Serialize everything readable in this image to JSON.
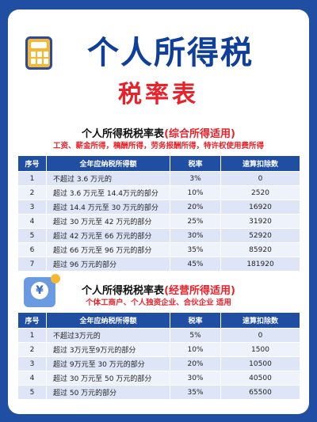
{
  "hero": {
    "title": "个人所得税",
    "subtitle": "税率表",
    "icon": "calculator-icon"
  },
  "section1": {
    "title": "个人所得税税率表",
    "title_highlight": "(综合所得适用)",
    "desc": "工资、薪金所得，稿酬所得，劳务报酬所得，特许权使用费所得",
    "headers": [
      "序号",
      "全年应纳税所得额",
      "税率",
      "速算扣除数"
    ],
    "rows": [
      [
        "1",
        "不超过 3.6 万元的",
        "3%",
        "0"
      ],
      [
        "2",
        "超过 3.6 万元至 14.4万元的部分",
        "10%",
        "2520"
      ],
      [
        "3",
        "超过 14.4 万元至 30 万元的部分",
        "20%",
        "16920"
      ],
      [
        "4",
        "超过 30 万元至 42 万元的部分",
        "25%",
        "31920"
      ],
      [
        "5",
        "超过 42 万元至 66 万元的部分",
        "30%",
        "52920"
      ],
      [
        "6",
        "超过 66 万元至 96 万元的部分",
        "35%",
        "85920"
      ],
      [
        "7",
        "超过 96 万元的部分",
        "45%",
        "181920"
      ]
    ]
  },
  "section2": {
    "title": "个人所得税税率表",
    "title_highlight": "(经营所得适用)",
    "desc": "个体工商户、个人独资企业、合伙企业 适用",
    "icon": "wallet-icon",
    "headers": [
      "序号",
      "全年应纳税所得额",
      "税率",
      "速算扣除数"
    ],
    "rows": [
      [
        "1",
        "不超过3万元的",
        "5%",
        "0"
      ],
      [
        "2",
        "超过 3万元至9万元的部分",
        "10%",
        "1500"
      ],
      [
        "3",
        "超过 9万元至 30 万元的部分",
        "20%",
        "10500"
      ],
      [
        "4",
        "超过 30 万元至 50 万元的部分",
        "30%",
        "40500"
      ],
      [
        "5",
        "超过 50 万元的部分",
        "35%",
        "65500"
      ]
    ]
  },
  "colors": {
    "background": "#1f4ea3",
    "title_blue": "#0f3f99",
    "accent_red": "#e8212a",
    "table_header": "#1f4ea3",
    "row_light": "#dde5f7"
  }
}
